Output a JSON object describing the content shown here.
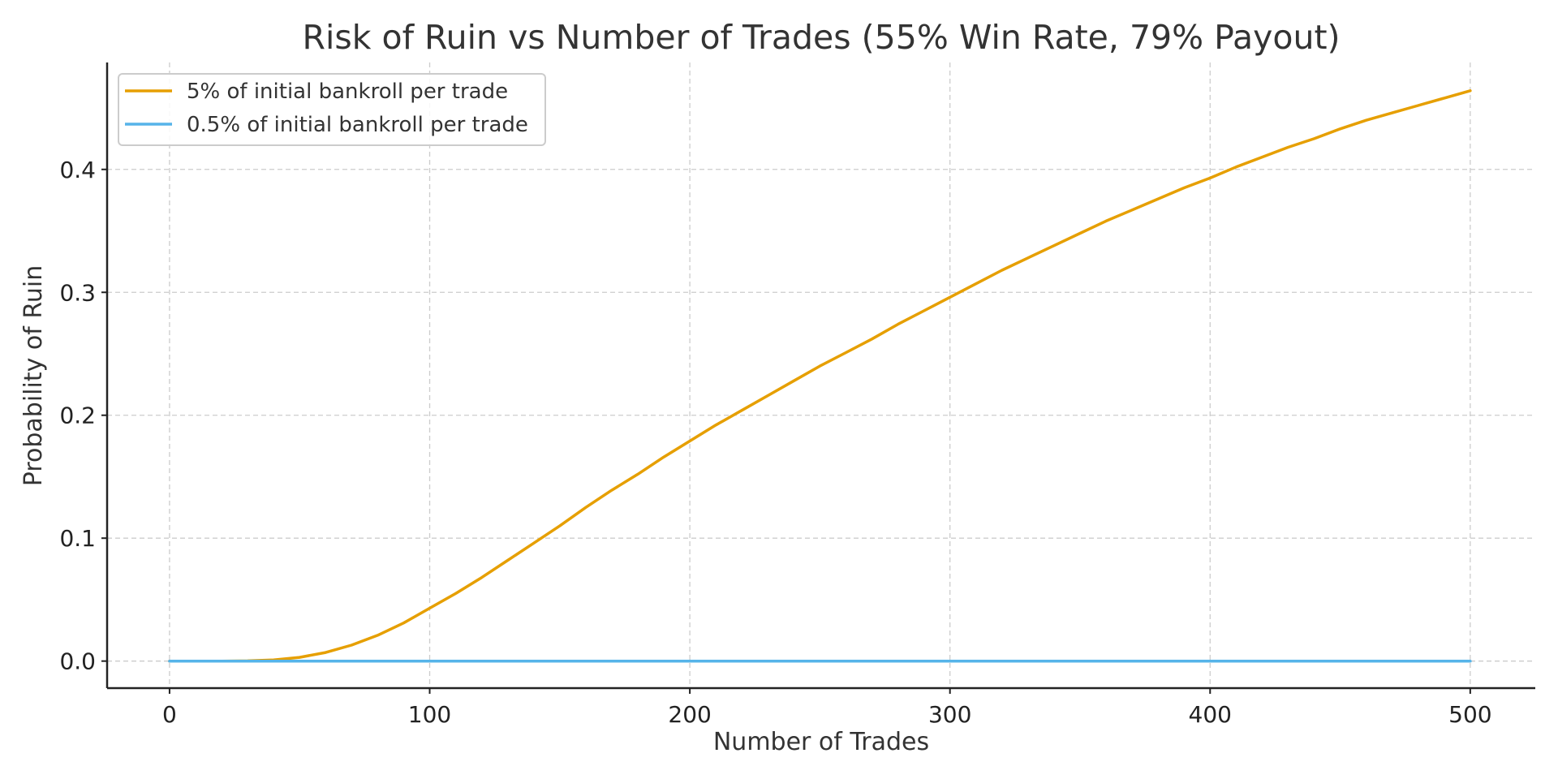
{
  "chart_data": {
    "type": "line",
    "title": "Risk of Ruin vs Number of Trades (55% Win Rate, 79% Payout)",
    "xlabel": "Number of Trades",
    "ylabel": "Probability of Ruin",
    "xlim": [
      -24,
      525
    ],
    "ylim": [
      -0.022,
      0.487
    ],
    "xticks": [
      0,
      100,
      200,
      300,
      400,
      500
    ],
    "xtick_labels": [
      "0",
      "100",
      "200",
      "300",
      "400",
      "500"
    ],
    "yticks": [
      0.0,
      0.1,
      0.2,
      0.3,
      0.4
    ],
    "ytick_labels": [
      "0.0",
      "0.1",
      "0.2",
      "0.3",
      "0.4"
    ],
    "grid": true,
    "legend_position": "top-left",
    "series": [
      {
        "name": "5% of initial bankroll per trade",
        "color": "#E69F00",
        "x": [
          0,
          20,
          30,
          40,
          50,
          60,
          70,
          80,
          90,
          100,
          110,
          120,
          130,
          140,
          150,
          160,
          170,
          180,
          190,
          200,
          210,
          220,
          230,
          240,
          250,
          260,
          270,
          280,
          290,
          300,
          310,
          320,
          330,
          340,
          350,
          360,
          370,
          380,
          390,
          400,
          410,
          420,
          430,
          440,
          450,
          460,
          470,
          480,
          490,
          500
        ],
        "y": [
          0,
          0,
          0.0002,
          0.001,
          0.003,
          0.007,
          0.013,
          0.021,
          0.031,
          0.043,
          0.055,
          0.068,
          0.082,
          0.096,
          0.11,
          0.125,
          0.139,
          0.152,
          0.166,
          0.179,
          0.192,
          0.204,
          0.216,
          0.228,
          0.24,
          0.251,
          0.262,
          0.274,
          0.285,
          0.296,
          0.307,
          0.318,
          0.328,
          0.338,
          0.348,
          0.358,
          0.367,
          0.376,
          0.385,
          0.393,
          0.402,
          0.41,
          0.418,
          0.425,
          0.433,
          0.44,
          0.446,
          0.452,
          0.458,
          0.464
        ]
      },
      {
        "name": "0.5% of initial bankroll per trade",
        "color": "#56B4E9",
        "x": [
          0,
          500
        ],
        "y": [
          0,
          0
        ]
      }
    ]
  }
}
